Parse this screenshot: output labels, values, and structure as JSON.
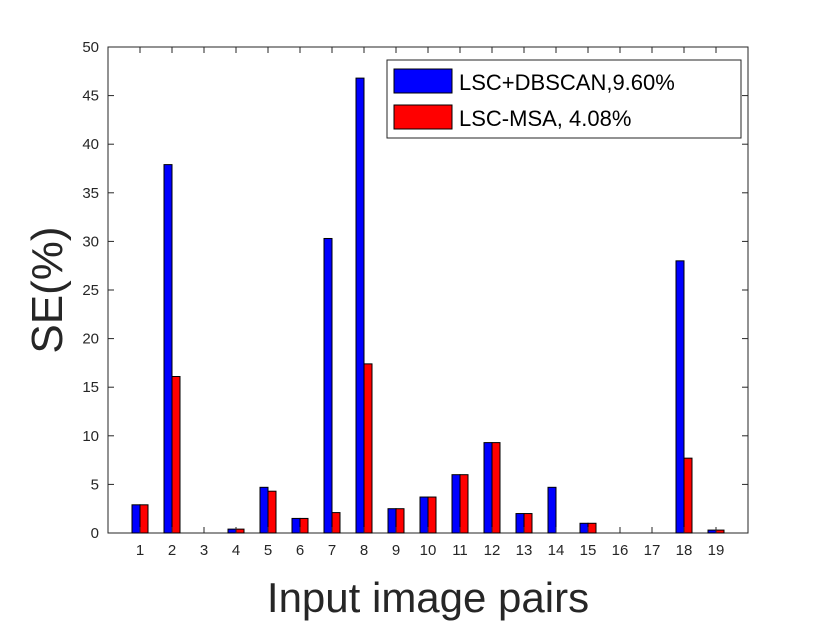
{
  "chart_data": {
    "type": "bar",
    "title": "",
    "xlabel": "Input image pairs",
    "ylabel": "SE(%)",
    "ylim": [
      0,
      50
    ],
    "yticks": [
      0,
      5,
      10,
      15,
      20,
      25,
      30,
      35,
      40,
      45,
      50
    ],
    "categories": [
      "1",
      "2",
      "3",
      "4",
      "5",
      "6",
      "7",
      "8",
      "9",
      "10",
      "11",
      "12",
      "13",
      "14",
      "15",
      "16",
      "17",
      "18",
      "19"
    ],
    "series": [
      {
        "name": "LSC+DBSCAN,9.60%",
        "color": "#0000ff",
        "values": [
          2.9,
          37.9,
          0,
          0.4,
          4.7,
          1.5,
          30.3,
          46.8,
          2.5,
          3.7,
          6.0,
          9.3,
          2.0,
          4.7,
          1.0,
          0,
          0,
          28.0,
          0.3
        ]
      },
      {
        "name": "LSC-MSA, 4.08%",
        "color": "#ff0000",
        "values": [
          2.9,
          16.1,
          0,
          0.4,
          4.3,
          1.5,
          2.1,
          17.4,
          2.5,
          3.7,
          6.0,
          9.3,
          2.0,
          0,
          1.0,
          0,
          0,
          7.7,
          0.3
        ]
      }
    ],
    "grid": false,
    "legend_position": "top-right"
  }
}
